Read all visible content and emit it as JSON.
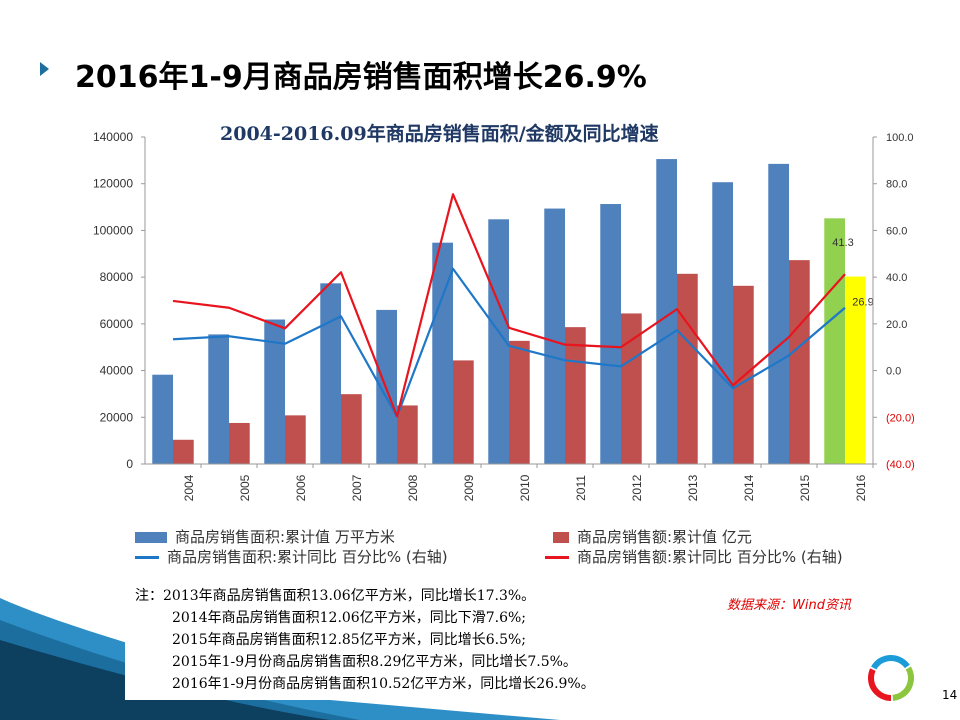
{
  "slide": {
    "title": "2016年1-9月商品房销售面积增长26.9%",
    "page_number": "14",
    "source": "数据来源：Wind资讯"
  },
  "notes": [
    "注：2013年商品房销售面积13.06亿平方米，同比增长17.3%。",
    "2014年商品房销售面积12.06亿平方米，同比下滑7.6%;",
    "2015年商品房销售面积12.85亿平方米，同比增长6.5%;",
    "2015年1-9月份商品房销售面积8.29亿平方米，同比增长7.5%。",
    "2016年1-9月份商品房销售面积10.52亿平方米，同比增长26.9%。"
  ],
  "chart_data": {
    "type": "bar",
    "title": "2004-2016.09年商品房销售面积/金额及同比增速",
    "categories": [
      "2004",
      "2005",
      "2006",
      "2007",
      "2008",
      "2009",
      "2010",
      "2011",
      "2012",
      "2013",
      "2014",
      "2015",
      "2016"
    ],
    "y_left": {
      "ylim": [
        0,
        140000
      ],
      "ticks": [
        "0",
        "20000",
        "40000",
        "60000",
        "80000",
        "100000",
        "120000",
        "140000"
      ]
    },
    "y_right": {
      "ylim": [
        -40,
        100
      ],
      "ticks": [
        "(40.0)",
        "(20.0)",
        "0.0",
        "20.0",
        "40.0",
        "60.0",
        "80.0",
        "100.0"
      ]
    },
    "series": [
      {
        "name": "商品房销售面积:累计值 万平方米",
        "kind": "bar",
        "axis": "left",
        "color": "#4F81BD",
        "highlight_last": "#92D050",
        "values": [
          38232,
          55486,
          61857,
          77355,
          65970,
          94755,
          104765,
          109367,
          111304,
          130551,
          120649,
          128495,
          105185
        ]
      },
      {
        "name": "商品房销售额:累计值 亿元",
        "kind": "bar",
        "axis": "left",
        "color": "#C0504D",
        "highlight_last": "#FFFF00",
        "values": [
          10376,
          17576,
          20826,
          29889,
          25068,
          44355,
          52721,
          58589,
          64456,
          81428,
          76292,
          87281,
          80237
        ]
      },
      {
        "name": "商品房销售面积:累计同比 百分比% (右轴)",
        "kind": "line",
        "axis": "right",
        "color": "#1F77C8",
        "values": [
          13.4,
          14.7,
          11.5,
          23.2,
          -19.7,
          43.6,
          10.6,
          4.4,
          1.8,
          17.3,
          -7.6,
          6.5,
          26.9
        ]
      },
      {
        "name": "商品房销售额:累计同比 百分比% (右轴)",
        "kind": "line",
        "axis": "right",
        "color": "#E8141E",
        "values": [
          29.8,
          26.9,
          18.1,
          42.1,
          -19.5,
          75.5,
          18.3,
          11.1,
          10.0,
          26.3,
          -6.3,
          14.4,
          41.3
        ]
      }
    ],
    "data_labels": [
      {
        "series": 3,
        "index": 12,
        "text": "41.3"
      },
      {
        "series": 2,
        "index": 12,
        "text": "26.9"
      }
    ]
  }
}
